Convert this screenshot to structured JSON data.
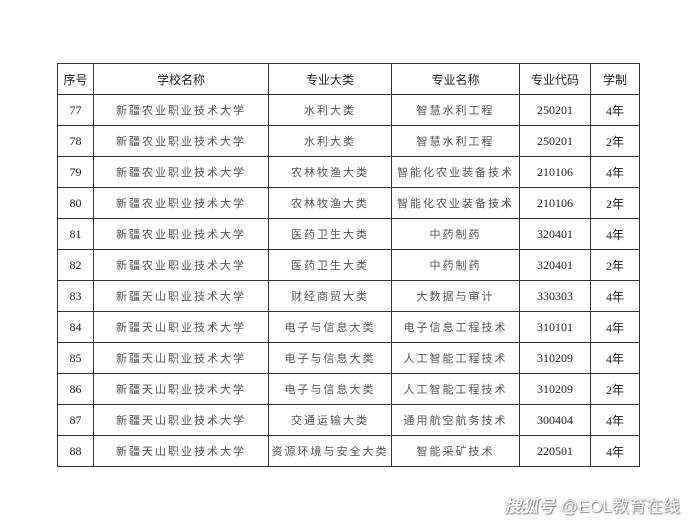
{
  "table": {
    "headers": [
      "序号",
      "学校名称",
      "专业大类",
      "专业名称",
      "专业代码",
      "学制"
    ],
    "rows": [
      [
        "77",
        "新疆农业职业技术大学",
        "水利大类",
        "智慧水利工程",
        "250201",
        "4年"
      ],
      [
        "78",
        "新疆农业职业技术大学",
        "水利大类",
        "智慧水利工程",
        "250201",
        "2年"
      ],
      [
        "79",
        "新疆农业职业技术大学",
        "农林牧渔大类",
        "智能化农业装备技术",
        "210106",
        "4年"
      ],
      [
        "80",
        "新疆农业职业技术大学",
        "农林牧渔大类",
        "智能化农业装备技术",
        "210106",
        "2年"
      ],
      [
        "81",
        "新疆农业职业技术大学",
        "医药卫生大类",
        "中药制药",
        "320401",
        "4年"
      ],
      [
        "82",
        "新疆农业职业技术大学",
        "医药卫生大类",
        "中药制药",
        "320401",
        "2年"
      ],
      [
        "83",
        "新疆天山职业技术大学",
        "财经商贸大类",
        "大数据与审计",
        "330303",
        "4年"
      ],
      [
        "84",
        "新疆天山职业技术大学",
        "电子与信息大类",
        "电子信息工程技术",
        "310101",
        "4年"
      ],
      [
        "85",
        "新疆天山职业技术大学",
        "电子与信息大类",
        "人工智能工程技术",
        "310209",
        "4年"
      ],
      [
        "86",
        "新疆天山职业技术大学",
        "电子与信息大类",
        "人工智能工程技术",
        "310209",
        "2年"
      ],
      [
        "87",
        "新疆天山职业技术大学",
        "交通运输大类",
        "通用航空航务技术",
        "300404",
        "4年"
      ],
      [
        "88",
        "新疆天山职业技术大学",
        "资源环境与安全大类",
        "智能采矿技术",
        "220501",
        "4年"
      ]
    ]
  },
  "watermark": {
    "brand": "搜狐号",
    "account": "@EOL教育在线"
  }
}
